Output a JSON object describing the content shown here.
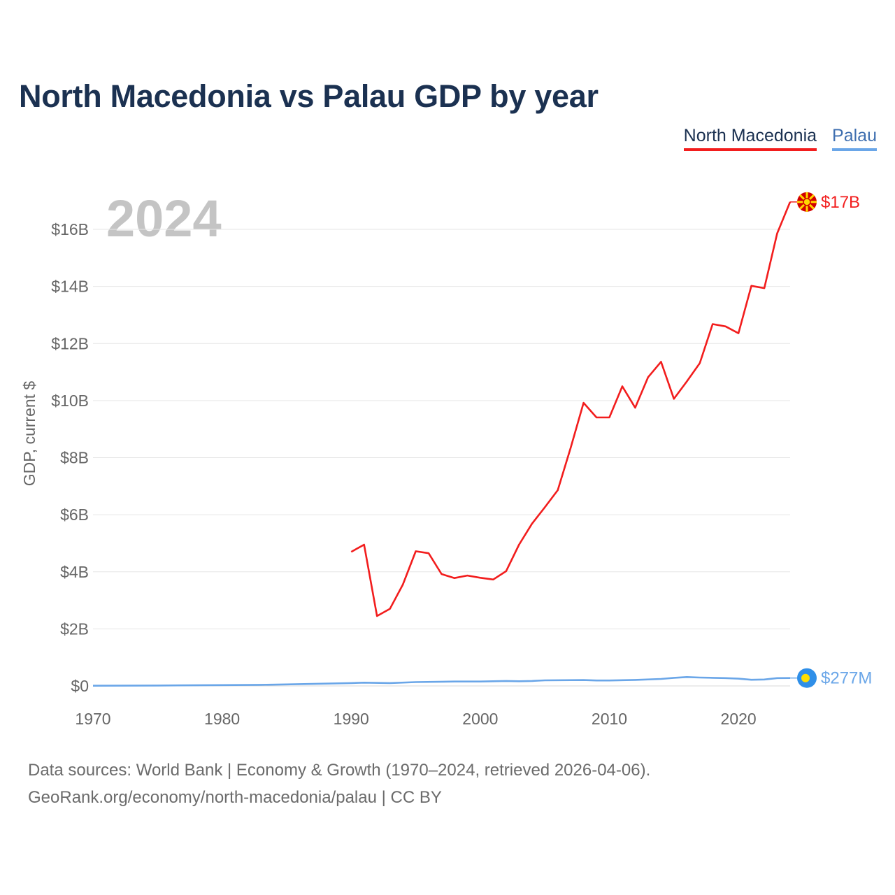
{
  "title": "North Macedonia vs Palau GDP by year",
  "legend": [
    {
      "name": "North Macedonia",
      "color": "#f21d1d"
    },
    {
      "name": "Palau",
      "color": "#6aa6e8"
    }
  ],
  "year_watermark": "2024",
  "source": {
    "line1": "Data sources: World Bank | Economy & Growth (1970–2024, retrieved 2026-04-06).",
    "line2": "GeoRank.org/economy/north-macedonia/palau | CC BY"
  },
  "colors": {
    "mk": "#f21d1d",
    "pw": "#6aa6e8",
    "grid": "#e6e6e6",
    "axis_text": "#666666",
    "watermark": "#c4c4c4"
  },
  "chart_data": {
    "type": "line",
    "title": "North Macedonia vs Palau GDP by year",
    "xlabel": "",
    "ylabel": "GDP, current $",
    "xlim": [
      1970,
      2024
    ],
    "ylim": [
      0,
      17.3
    ],
    "y_unit": "billion US$",
    "xticks": [
      1970,
      1980,
      1990,
      2000,
      2010,
      2020
    ],
    "xtick_labels": [
      "1970",
      "1980",
      "1990",
      "2000",
      "2010",
      "2020"
    ],
    "yticks": [
      0,
      2,
      4,
      6,
      8,
      10,
      12,
      14,
      16
    ],
    "ytick_labels": [
      "$0",
      "$2B",
      "$4B",
      "$6B",
      "$8B",
      "$10B",
      "$12B",
      "$14B",
      "$16B"
    ],
    "grid": true,
    "series": [
      {
        "name": "North Macedonia",
        "color": "#f21d1d",
        "end_label": "$17B",
        "points": [
          [
            1990,
            4.7
          ],
          [
            1991,
            4.95
          ],
          [
            1992,
            2.45
          ],
          [
            1993,
            2.7
          ],
          [
            1994,
            3.55
          ],
          [
            1995,
            4.72
          ],
          [
            1996,
            4.65
          ],
          [
            1997,
            3.92
          ],
          [
            1998,
            3.78
          ],
          [
            1999,
            3.87
          ],
          [
            2000,
            3.79
          ],
          [
            2001,
            3.73
          ],
          [
            2002,
            4.02
          ],
          [
            2003,
            4.95
          ],
          [
            2004,
            5.68
          ],
          [
            2005,
            6.26
          ],
          [
            2006,
            6.86
          ],
          [
            2007,
            8.34
          ],
          [
            2008,
            9.92
          ],
          [
            2009,
            9.41
          ],
          [
            2010,
            9.41
          ],
          [
            2011,
            10.5
          ],
          [
            2012,
            9.75
          ],
          [
            2013,
            10.82
          ],
          [
            2014,
            11.36
          ],
          [
            2015,
            10.06
          ],
          [
            2016,
            10.67
          ],
          [
            2017,
            11.31
          ],
          [
            2018,
            12.68
          ],
          [
            2019,
            12.6
          ],
          [
            2020,
            12.36
          ],
          [
            2021,
            14.02
          ],
          [
            2022,
            13.94
          ],
          [
            2023,
            15.86
          ],
          [
            2024,
            16.96
          ]
        ]
      },
      {
        "name": "Palau",
        "color": "#6aa6e8",
        "end_label": "$277M",
        "points": [
          [
            1970,
            0.008
          ],
          [
            1975,
            0.015
          ],
          [
            1980,
            0.03
          ],
          [
            1983,
            0.04
          ],
          [
            1985,
            0.055
          ],
          [
            1990,
            0.1
          ],
          [
            1991,
            0.115
          ],
          [
            1993,
            0.1
          ],
          [
            1995,
            0.135
          ],
          [
            1998,
            0.155
          ],
          [
            2000,
            0.155
          ],
          [
            2002,
            0.175
          ],
          [
            2003,
            0.165
          ],
          [
            2004,
            0.175
          ],
          [
            2005,
            0.195
          ],
          [
            2008,
            0.205
          ],
          [
            2009,
            0.19
          ],
          [
            2010,
            0.19
          ],
          [
            2012,
            0.21
          ],
          [
            2014,
            0.245
          ],
          [
            2015,
            0.285
          ],
          [
            2016,
            0.31
          ],
          [
            2017,
            0.295
          ],
          [
            2018,
            0.285
          ],
          [
            2019,
            0.275
          ],
          [
            2020,
            0.255
          ],
          [
            2021,
            0.215
          ],
          [
            2022,
            0.225
          ],
          [
            2023,
            0.275
          ],
          [
            2024,
            0.277
          ]
        ]
      }
    ]
  }
}
